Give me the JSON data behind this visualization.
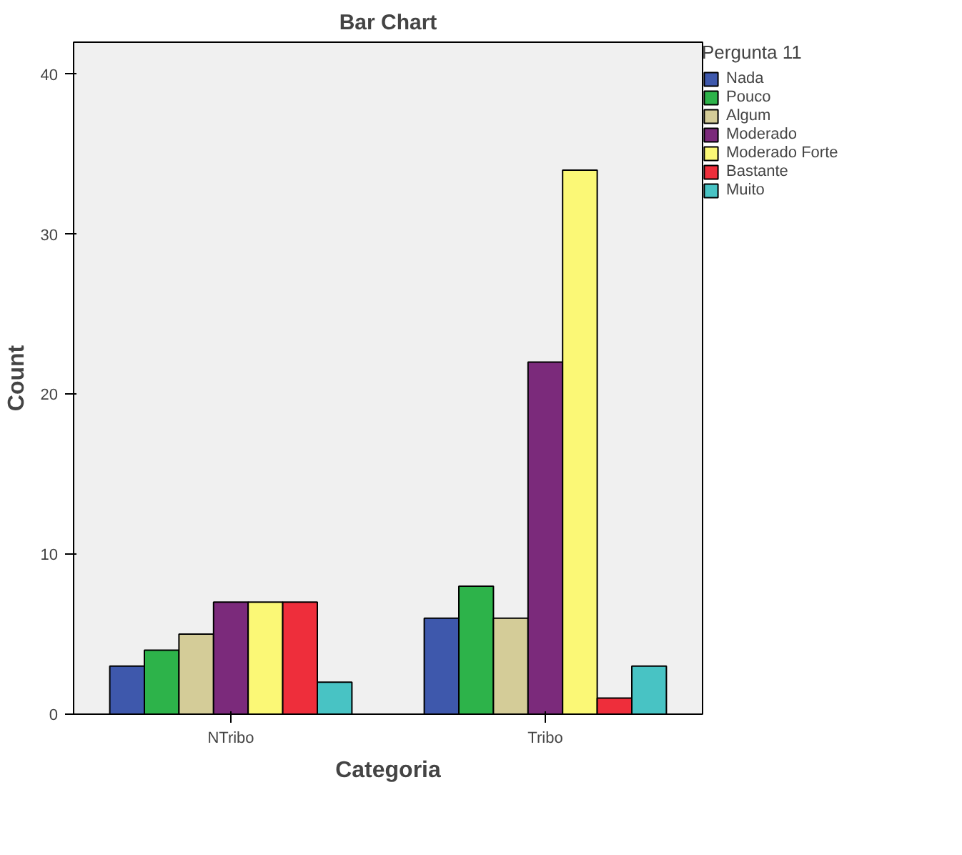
{
  "chart_data": {
    "type": "bar",
    "title": "Bar Chart",
    "xlabel": "Categoria",
    "ylabel": "Count",
    "legend_title": "Pergunta 11",
    "categories": [
      "NTribo",
      "Tribo"
    ],
    "series": [
      {
        "name": "Nada",
        "color": "#3e58ac",
        "values": [
          3,
          6
        ]
      },
      {
        "name": "Pouco",
        "color": "#2db34a",
        "values": [
          4,
          8
        ]
      },
      {
        "name": "Algum",
        "color": "#d4cc98",
        "values": [
          5,
          6
        ]
      },
      {
        "name": "Moderado",
        "color": "#7b2a7b",
        "values": [
          7,
          22
        ]
      },
      {
        "name": "Moderado Forte",
        "color": "#fbf876",
        "values": [
          7,
          34
        ]
      },
      {
        "name": "Bastante",
        "color": "#ee2e3b",
        "values": [
          7,
          1
        ]
      },
      {
        "name": "Muito",
        "color": "#48c3c4",
        "values": [
          2,
          3
        ]
      }
    ],
    "ylim": [
      0,
      42
    ],
    "yticks": [
      0,
      10,
      20,
      30,
      40
    ],
    "grid": false,
    "legend": "right"
  }
}
